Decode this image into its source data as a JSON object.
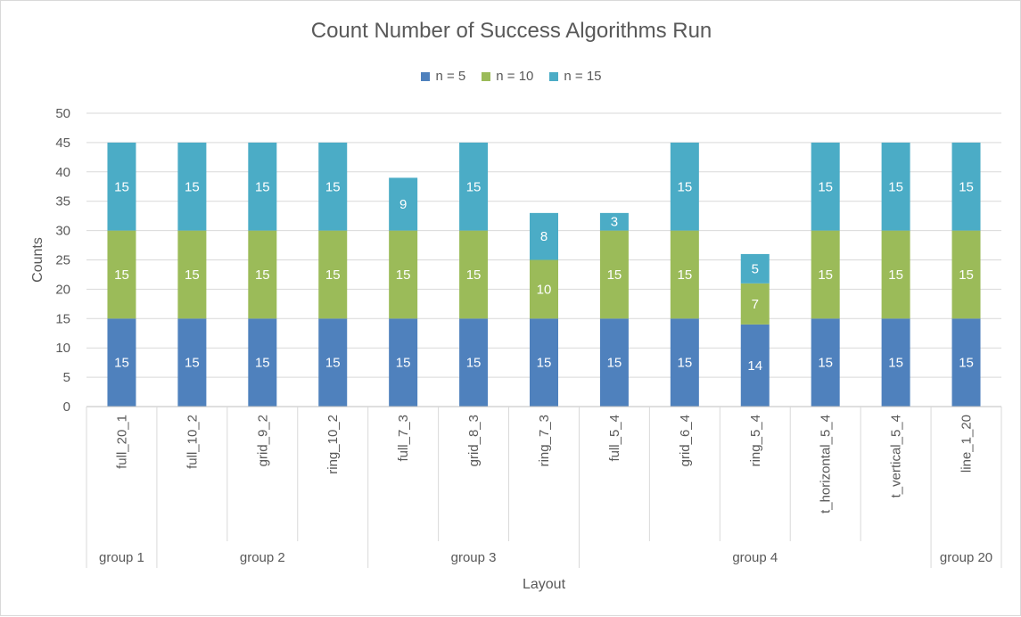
{
  "chart_data": {
    "type": "bar",
    "stacked": true,
    "title": "Count Number of Success Algorithms Run",
    "xlabel": "Layout",
    "ylabel": "Counts",
    "ylim": [
      0,
      50
    ],
    "yticks": [
      0,
      5,
      10,
      15,
      20,
      25,
      30,
      35,
      40,
      45,
      50
    ],
    "grid": true,
    "legend_position": "top",
    "categories": [
      "full_20_1",
      "full_10_2",
      "grid_9_2",
      "ring_10_2",
      "full_7_3",
      "grid_8_3",
      "ring_7_3",
      "full_5_4",
      "grid_6_4",
      "ring_5_4",
      "t_horizontal_5_4",
      "t_vertical_5_4",
      "line_1_20"
    ],
    "groups": [
      {
        "label": "group 1",
        "count": 1
      },
      {
        "label": "group 2",
        "count": 3
      },
      {
        "label": "group 3",
        "count": 3
      },
      {
        "label": "group 4",
        "count": 5
      },
      {
        "label": "group 20",
        "count": 1
      }
    ],
    "series": [
      {
        "name": "n = 5",
        "color": "#4f81bd",
        "values": [
          15,
          15,
          15,
          15,
          15,
          15,
          15,
          15,
          15,
          14,
          15,
          15,
          15
        ]
      },
      {
        "name": "n = 10",
        "color": "#9bbb59",
        "values": [
          15,
          15,
          15,
          15,
          15,
          15,
          10,
          15,
          15,
          7,
          15,
          15,
          15
        ]
      },
      {
        "name": "n = 15",
        "color": "#4bacc6",
        "values": [
          15,
          15,
          15,
          15,
          9,
          15,
          8,
          3,
          15,
          5,
          15,
          15,
          15
        ]
      }
    ]
  }
}
